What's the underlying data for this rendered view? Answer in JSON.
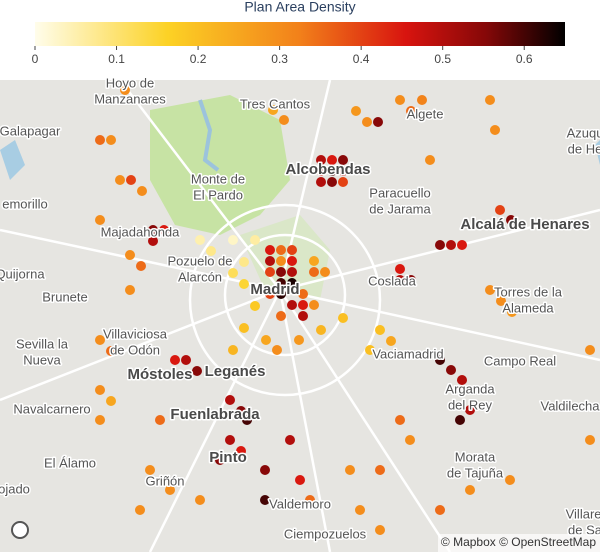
{
  "chart_data": {
    "type": "scatter_map",
    "title": "Plan Area Density",
    "colorscale": [
      [
        0,
        "#fffdeb"
      ],
      [
        0.25,
        "#fcd225"
      ],
      [
        0.5,
        "#f2801a"
      ],
      [
        0.7,
        "#d8140f"
      ],
      [
        0.85,
        "#860808"
      ],
      [
        1,
        "#000000"
      ]
    ],
    "clim": [
      0,
      0.65
    ],
    "cticks": [
      0,
      0.1,
      0.2,
      0.3,
      0.4,
      0.5,
      0.6
    ],
    "lonlim": [
      -4.05,
      -3.45
    ],
    "latlim": [
      40.168,
      40.64
    ],
    "lon": [
      -3.78,
      -3.769,
      -3.758,
      -3.78,
      -3.769,
      -3.758,
      -3.78,
      -3.769,
      -3.758,
      -3.769,
      -3.758,
      -3.769,
      -3.78,
      -3.747,
      -3.747,
      -3.758,
      -3.736,
      -3.769,
      -3.747,
      -3.736,
      -3.725,
      -3.736,
      -3.85,
      -3.839,
      -3.828,
      -3.817,
      -3.806,
      -3.817,
      -3.795,
      -3.806,
      -3.795,
      -3.806,
      -3.817,
      -3.784,
      -3.773,
      -3.751,
      -3.729,
      -3.707,
      -3.729,
      -3.718,
      -3.707,
      -3.729,
      -3.718,
      -3.707,
      -3.729,
      -3.718,
      -3.707,
      -3.925,
      -3.65,
      -3.639,
      -3.628,
      -3.694,
      -3.683,
      -3.672,
      -3.777,
      -3.766,
      -3.56,
      -3.555,
      -3.62,
      -3.61,
      -3.599,
      -3.588,
      -3.65,
      -3.639,
      -3.65,
      -3.55,
      -3.539,
      -3.56,
      -3.549,
      -3.538,
      -3.61,
      -3.599,
      -3.588,
      -3.58,
      -3.59,
      -3.67,
      -3.659,
      -3.68,
      -3.46,
      -3.46,
      -3.54,
      -3.58,
      -3.61,
      -3.95,
      -3.939,
      -3.93,
      -3.919,
      -3.908,
      -3.897,
      -3.886,
      -3.897,
      -3.92,
      -3.909,
      -3.92,
      -3.95,
      -3.939,
      -3.95,
      -3.939,
      -3.95,
      -3.95,
      -3.875,
      -3.864,
      -3.853,
      -3.82,
      -3.809,
      -3.803,
      -3.82,
      -3.809,
      -3.83,
      -3.89,
      -3.9,
      -3.88,
      -3.785,
      -3.76,
      -3.75,
      -3.74,
      -3.785,
      -3.7,
      -3.67,
      -3.65,
      -3.64,
      -3.69,
      -3.67,
      -3.85,
      -3.91
    ],
    "lat": [
      40.47,
      40.47,
      40.47,
      40.459,
      40.459,
      40.459,
      40.448,
      40.448,
      40.448,
      40.437,
      40.437,
      40.426,
      40.426,
      40.426,
      40.415,
      40.415,
      40.415,
      40.404,
      40.404,
      40.448,
      40.448,
      40.459,
      40.48,
      40.469,
      40.458,
      40.447,
      40.436,
      40.48,
      40.48,
      40.458,
      40.414,
      40.392,
      40.37,
      40.38,
      40.37,
      40.38,
      40.39,
      40.402,
      40.56,
      40.56,
      40.56,
      40.549,
      40.549,
      40.549,
      40.538,
      40.538,
      40.538,
      40.63,
      40.62,
      40.609,
      40.62,
      40.609,
      40.598,
      40.598,
      40.61,
      40.6,
      40.62,
      40.59,
      40.56,
      40.475,
      40.475,
      40.475,
      40.44,
      40.44,
      40.451,
      40.51,
      40.5,
      40.43,
      40.419,
      40.408,
      40.36,
      40.35,
      40.34,
      40.31,
      40.3,
      40.39,
      40.379,
      40.37,
      40.37,
      40.28,
      40.24,
      40.23,
      40.21,
      40.58,
      40.58,
      40.54,
      40.54,
      40.529,
      40.49,
      40.49,
      40.479,
      40.465,
      40.454,
      40.43,
      40.38,
      40.369,
      40.33,
      40.319,
      40.3,
      40.5,
      40.36,
      40.36,
      40.349,
      40.32,
      40.309,
      40.3,
      40.28,
      40.269,
      40.26,
      40.3,
      40.25,
      40.23,
      40.25,
      40.28,
      40.24,
      40.22,
      40.22,
      40.25,
      40.25,
      40.3,
      40.28,
      40.21,
      40.19,
      40.22,
      40.21
    ],
    "values": [
      0.45,
      0.35,
      0.4,
      0.5,
      0.3,
      0.45,
      0.4,
      0.55,
      0.5,
      0.6,
      0.63,
      0.62,
      0.4,
      0.35,
      0.45,
      0.5,
      0.3,
      0.35,
      0.5,
      0.35,
      0.3,
      0.25,
      0.05,
      0.08,
      0.1,
      0.12,
      0.15,
      0.03,
      0.06,
      0.08,
      0.18,
      0.2,
      0.22,
      0.25,
      0.3,
      0.28,
      0.22,
      0.2,
      0.5,
      0.45,
      0.55,
      0.45,
      0.6,
      0.5,
      0.5,
      0.55,
      0.4,
      0.3,
      0.3,
      0.35,
      0.32,
      0.28,
      0.3,
      0.55,
      0.25,
      0.3,
      0.3,
      0.3,
      0.3,
      0.55,
      0.5,
      0.45,
      0.5,
      0.55,
      0.45,
      0.4,
      0.55,
      0.3,
      0.3,
      0.28,
      0.6,
      0.55,
      0.5,
      0.5,
      0.6,
      0.2,
      0.25,
      0.2,
      0.3,
      0.3,
      0.3,
      0.3,
      0.35,
      0.35,
      0.3,
      0.3,
      0.4,
      0.3,
      0.55,
      0.45,
      0.5,
      0.3,
      0.35,
      0.3,
      0.3,
      0.35,
      0.3,
      0.25,
      0.3,
      0.3,
      0.45,
      0.5,
      0.55,
      0.5,
      0.55,
      0.6,
      0.5,
      0.45,
      0.55,
      0.35,
      0.3,
      0.3,
      0.55,
      0.5,
      0.45,
      0.35,
      0.6,
      0.3,
      0.35,
      0.35,
      0.3,
      0.3,
      0.3,
      0.3,
      0.3
    ],
    "places": [
      {
        "lines": [
          "Hoyo de",
          "Manzanares"
        ],
        "lon": -3.92,
        "lat": 40.628
      },
      {
        "lines": [
          "Tres Cantos"
        ],
        "lon": -3.775,
        "lat": 40.615
      },
      {
        "lines": [
          "Algete"
        ],
        "lon": -3.625,
        "lat": 40.605
      },
      {
        "lines": [
          "Galapagar"
        ],
        "lon": -4.02,
        "lat": 40.588
      },
      {
        "lines": [
          "Azuqu",
          "de He"
        ],
        "lon": -3.465,
        "lat": 40.578
      },
      {
        "lines": [
          "Monte de",
          "El Pardo"
        ],
        "lon": -3.832,
        "lat": 40.532
      },
      {
        "lines": [
          "Alcobendas"
        ],
        "lon": -3.722,
        "lat": 40.55,
        "major": true
      },
      {
        "lines": [
          "Paracuello",
          "de Jarama"
        ],
        "lon": -3.65,
        "lat": 40.518
      },
      {
        "lines": [
          "emorillo"
        ],
        "lon": -4.025,
        "lat": 40.515
      },
      {
        "lines": [
          "Majadahonda"
        ],
        "lon": -3.91,
        "lat": 40.487
      },
      {
        "lines": [
          "Alcalá de Henares"
        ],
        "lon": -3.525,
        "lat": 40.495,
        "major": true
      },
      {
        "lines": [
          "Quijorna"
        ],
        "lon": -4.03,
        "lat": 40.445
      },
      {
        "lines": [
          "Pozuelo de",
          "Alarcón"
        ],
        "lon": -3.85,
        "lat": 40.45
      },
      {
        "lines": [
          "Madrid"
        ],
        "lon": -3.775,
        "lat": 40.43,
        "major": true
      },
      {
        "lines": [
          "Coslada"
        ],
        "lon": -3.658,
        "lat": 40.438
      },
      {
        "lines": [
          "Torres de la",
          "Alameda"
        ],
        "lon": -3.522,
        "lat": 40.419
      },
      {
        "lines": [
          "Brunete"
        ],
        "lon": -3.985,
        "lat": 40.422
      },
      {
        "lines": [
          "Villaviciosa",
          "de Odón"
        ],
        "lon": -3.915,
        "lat": 40.377
      },
      {
        "lines": [
          "Sevilla la",
          "Nueva"
        ],
        "lon": -4.008,
        "lat": 40.367
      },
      {
        "lines": [
          "Vaciamadrid"
        ],
        "lon": -3.642,
        "lat": 40.365
      },
      {
        "lines": [
          "Campo Real"
        ],
        "lon": -3.53,
        "lat": 40.358
      },
      {
        "lines": [
          "Móstoles"
        ],
        "lon": -3.89,
        "lat": 40.345,
        "major": true
      },
      {
        "lines": [
          "Leganés"
        ],
        "lon": -3.815,
        "lat": 40.348,
        "major": true
      },
      {
        "lines": [
          "Navalcarnero"
        ],
        "lon": -3.998,
        "lat": 40.31
      },
      {
        "lines": [
          "Arganda",
          "del Rey"
        ],
        "lon": -3.58,
        "lat": 40.322
      },
      {
        "lines": [
          "Valdilecha"
        ],
        "lon": -3.48,
        "lat": 40.313
      },
      {
        "lines": [
          "Fuenlabrada"
        ],
        "lon": -3.835,
        "lat": 40.305,
        "major": true
      },
      {
        "lines": [
          "El Álamo"
        ],
        "lon": -3.98,
        "lat": 40.256
      },
      {
        "lines": [
          "Pinto"
        ],
        "lon": -3.822,
        "lat": 40.262,
        "major": true
      },
      {
        "lines": [
          "Morata",
          "de Tajuña"
        ],
        "lon": -3.575,
        "lat": 40.254
      },
      {
        "lines": [
          "Griñón"
        ],
        "lon": -3.885,
        "lat": 40.238
      },
      {
        "lines": [
          "ojado"
        ],
        "lon": -4.036,
        "lat": 40.23
      },
      {
        "lines": [
          "Valdemoro"
        ],
        "lon": -3.75,
        "lat": 40.215
      },
      {
        "lines": [
          "Ciempozuelos"
        ],
        "lon": -3.725,
        "lat": 40.185
      },
      {
        "lines": [
          "Villarej",
          "de Sa"
        ],
        "lon": -3.465,
        "lat": 40.197
      }
    ],
    "attribution": "© Mapbox © OpenStreetMap"
  }
}
